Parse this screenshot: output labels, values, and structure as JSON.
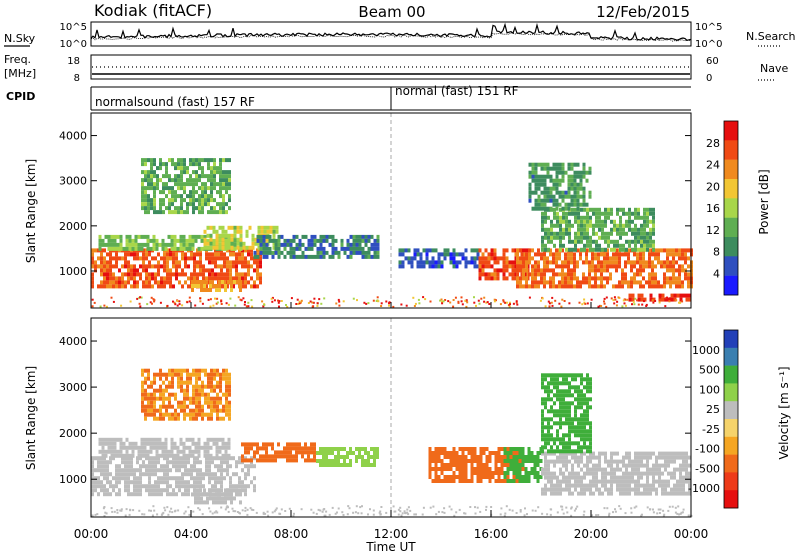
{
  "header": {
    "station": "Kodiak (fitACF)",
    "beam": "Beam 00",
    "date": "12/Feb/2015"
  },
  "status_panels": {
    "nsky_label": "N.Sky",
    "nsearch_label": "N.Search",
    "freq_label_1": "Freq.",
    "freq_label_2": "[MHz]",
    "nave_label": "Nave",
    "cpid_label": "CPID",
    "noise_ticks": [
      "10^5",
      "10^0"
    ],
    "freq_ticks": [
      "18",
      "8"
    ],
    "nave_ticks": [
      "60",
      "0"
    ],
    "modes": [
      {
        "label": "normalsound (fast) 157 RF",
        "start_hour": 0
      },
      {
        "label": "normal (fast) 151 RF",
        "start_hour": 12
      }
    ]
  },
  "colors": {
    "power_scale": [
      "#1a1aff",
      "#2f4fbf",
      "#3d8c5e",
      "#5fae52",
      "#a8d64a",
      "#f2c634",
      "#f08a1e",
      "#f04a14",
      "#e60f0f"
    ],
    "velocity_scale": [
      "#e60f0f",
      "#ee3a18",
      "#f06a1a",
      "#f5a623",
      "#f5d36b",
      "#bdbdbd",
      "#8fd14a",
      "#3fae3a",
      "#3a7fb0",
      "#2240b8"
    ],
    "axis": "#000000",
    "divider": "#999999"
  },
  "x_axis": {
    "ticks": [
      "00:00",
      "04:00",
      "08:00",
      "12:00",
      "16:00",
      "20:00",
      "00:00"
    ],
    "label": "Time UT"
  },
  "chart_data": [
    {
      "type": "heatmap",
      "name": "power",
      "title": "",
      "xlabel": "Time UT",
      "ylabel": "Slant Range [km]",
      "x_range_hours": [
        0,
        24
      ],
      "ylim": [
        180,
        4500
      ],
      "y_ticks": [
        "1000",
        "2000",
        "3000",
        "4000"
      ],
      "colorbar_label": "Power [dB]",
      "colorbar_ticks": [
        "28",
        "24",
        "20",
        "16",
        "12",
        "8",
        "4"
      ],
      "color_range": [
        0,
        32
      ],
      "bands": [
        {
          "t0": 0.0,
          "t1": 6.8,
          "r0": 700,
          "r1": 1500,
          "value": 26
        },
        {
          "t0": 0.3,
          "t1": 6.0,
          "r0": 1500,
          "r1": 1800,
          "value": 14
        },
        {
          "t0": 2.0,
          "t1": 5.5,
          "r0": 2300,
          "r1": 3500,
          "value": 12
        },
        {
          "t0": 4.5,
          "t1": 7.5,
          "r0": 1500,
          "r1": 2000,
          "value": 17
        },
        {
          "t0": 4.0,
          "t1": 6.0,
          "r0": 550,
          "r1": 800,
          "value": 22
        },
        {
          "t0": 6.5,
          "t1": 11.5,
          "r0": 1300,
          "r1": 1800,
          "value": 8
        },
        {
          "t0": 12.3,
          "t1": 15.5,
          "r0": 1100,
          "r1": 1500,
          "value": 6
        },
        {
          "t0": 15.5,
          "t1": 17.5,
          "r0": 800,
          "r1": 1500,
          "value": 27
        },
        {
          "t0": 17.0,
          "t1": 24.0,
          "r0": 700,
          "r1": 1500,
          "value": 25
        },
        {
          "t0": 18.0,
          "t1": 22.5,
          "r0": 1500,
          "r1": 2400,
          "value": 12
        },
        {
          "t0": 17.5,
          "t1": 20.0,
          "r0": 2400,
          "r1": 3400,
          "value": 10
        },
        {
          "t0": 21.5,
          "t1": 24.0,
          "r0": 350,
          "r1": 500,
          "value": 28
        }
      ]
    },
    {
      "type": "heatmap",
      "name": "velocity",
      "title": "",
      "xlabel": "Time UT",
      "ylabel": "Slant Range [km]",
      "x_range_hours": [
        0,
        24
      ],
      "ylim": [
        180,
        4500
      ],
      "y_ticks": [
        "1000",
        "2000",
        "3000",
        "4000"
      ],
      "colorbar_label": "Velocity [m s⁻¹]",
      "colorbar_ticks": [
        "1000",
        "500",
        "100",
        "25",
        "-25",
        "-100",
        "-500",
        "-1000"
      ],
      "bands": [
        {
          "t0": 0.0,
          "t1": 6.5,
          "r0": 700,
          "r1": 1500,
          "value": 0
        },
        {
          "t0": 0.3,
          "t1": 5.5,
          "r0": 1500,
          "r1": 1900,
          "value": 0
        },
        {
          "t0": 2.0,
          "t1": 5.5,
          "r0": 2300,
          "r1": 3400,
          "value": -100
        },
        {
          "t0": 4.0,
          "t1": 6.0,
          "r0": 500,
          "r1": 800,
          "value": 0
        },
        {
          "t0": 6.0,
          "t1": 9.0,
          "r0": 1400,
          "r1": 1800,
          "value": -150
        },
        {
          "t0": 9.0,
          "t1": 11.5,
          "r0": 1300,
          "r1": 1700,
          "value": 80
        },
        {
          "t0": 13.5,
          "t1": 17.3,
          "r0": 1000,
          "r1": 1700,
          "value": -150
        },
        {
          "t0": 16.5,
          "t1": 18.0,
          "r0": 1000,
          "r1": 1700,
          "value": 120
        },
        {
          "t0": 18.0,
          "t1": 24.0,
          "r0": 700,
          "r1": 1600,
          "value": 0
        },
        {
          "t0": 18.0,
          "t1": 20.0,
          "r0": 1600,
          "r1": 3300,
          "value": 200
        }
      ]
    }
  ]
}
